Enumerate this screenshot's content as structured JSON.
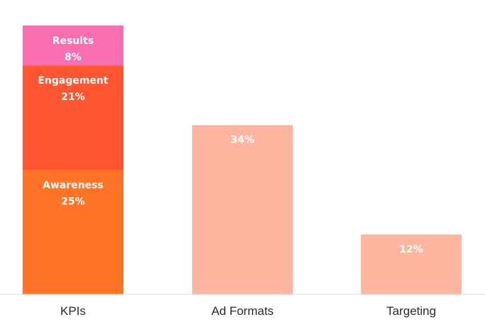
{
  "chart_data": {
    "type": "bar",
    "stacked": true,
    "categories": [
      "KPIs",
      "Ad Formats",
      "Targeting"
    ],
    "ylim": [
      0,
      55
    ],
    "grid": false,
    "legend": "none",
    "bars": [
      {
        "category": "KPIs",
        "segments": [
          {
            "label": "Awareness",
            "value": 25,
            "display": "25%",
            "color": "#ff7326"
          },
          {
            "label": "Engagement",
            "value": 21,
            "display": "21%",
            "color": "#ff5530"
          },
          {
            "label": "Results",
            "value": 8,
            "display": "8%",
            "color": "#f76fb1"
          }
        ]
      },
      {
        "category": "Ad Formats",
        "segments": [
          {
            "label": "",
            "value": 34,
            "display": "34%",
            "color": "#feb5a0"
          }
        ]
      },
      {
        "category": "Targeting",
        "segments": [
          {
            "label": "",
            "value": 12,
            "display": "12%",
            "color": "#feb5a0"
          }
        ]
      }
    ]
  }
}
